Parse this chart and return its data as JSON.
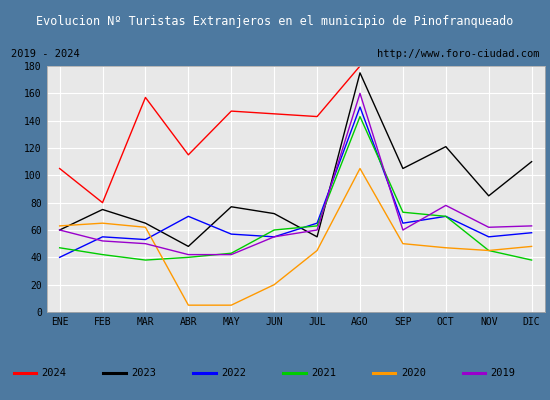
{
  "title": "Evolucion Nº Turistas Extranjeros en el municipio de Pinofranqueado",
  "subtitle_left": "2019 - 2024",
  "subtitle_right": "http://www.foro-ciudad.com",
  "months": [
    "ENE",
    "FEB",
    "MAR",
    "ABR",
    "MAY",
    "JUN",
    "JUL",
    "AGO",
    "SEP",
    "OCT",
    "NOV",
    "DIC"
  ],
  "series": {
    "2024": [
      105,
      80,
      157,
      115,
      147,
      145,
      143,
      180,
      null,
      null,
      null,
      null
    ],
    "2023": [
      60,
      75,
      65,
      48,
      77,
      72,
      55,
      175,
      105,
      121,
      85,
      110
    ],
    "2022": [
      40,
      55,
      53,
      70,
      57,
      55,
      65,
      150,
      65,
      70,
      55,
      58
    ],
    "2021": [
      47,
      42,
      38,
      40,
      43,
      60,
      63,
      143,
      73,
      70,
      45,
      38
    ],
    "2020": [
      63,
      65,
      62,
      5,
      5,
      20,
      45,
      105,
      50,
      47,
      45,
      48
    ],
    "2019": [
      60,
      52,
      50,
      42,
      42,
      55,
      60,
      160,
      60,
      78,
      62,
      63
    ]
  },
  "colors": {
    "2024": "#ff0000",
    "2023": "#000000",
    "2022": "#0000ff",
    "2021": "#00cc00",
    "2020": "#ff9900",
    "2019": "#9900cc"
  },
  "ylim": [
    0,
    180
  ],
  "yticks": [
    0,
    20,
    40,
    60,
    80,
    100,
    120,
    140,
    160,
    180
  ],
  "title_bg_color": "#4d79a0",
  "title_font_color": "#ffffff",
  "plot_bg_color": "#e8e8e8",
  "grid_color": "#ffffff",
  "border_color": "#4d79a0",
  "legend_order": [
    "2024",
    "2023",
    "2022",
    "2021",
    "2020",
    "2019"
  ]
}
